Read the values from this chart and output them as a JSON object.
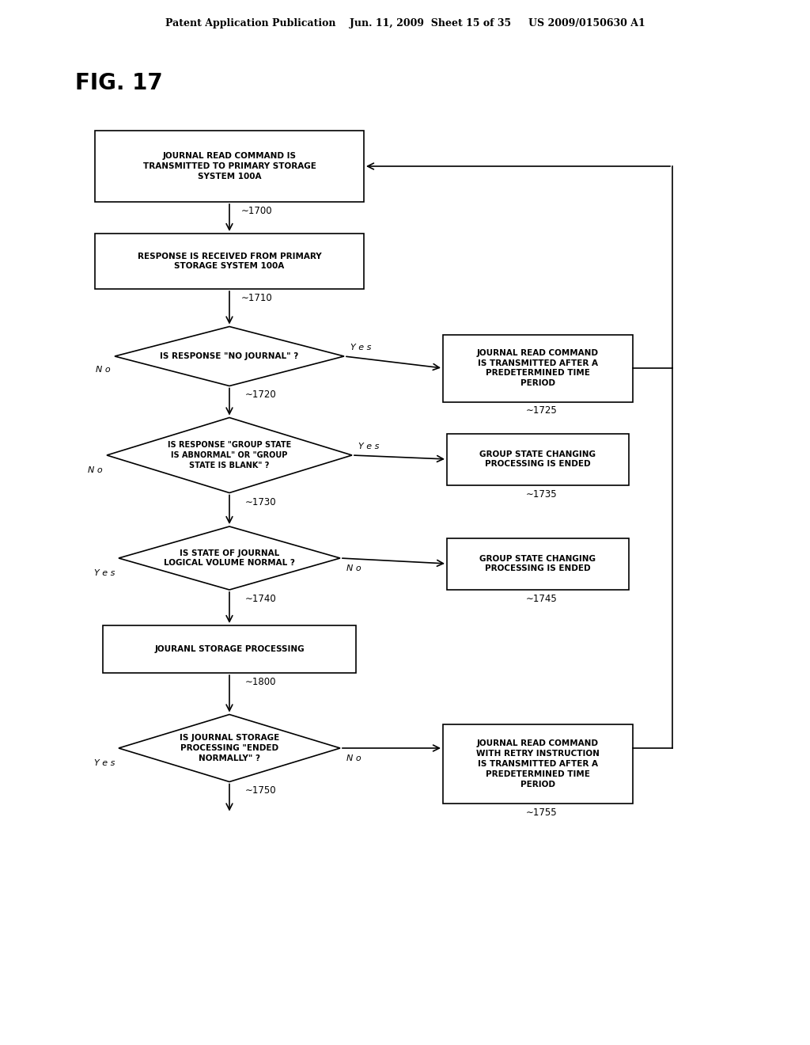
{
  "bg_color": "#ffffff",
  "header_text": "Patent Application Publication    Jun. 11, 2009  Sheet 15 of 35     US 2009/0150630 A1",
  "fig_label": "FIG. 17",
  "box1700_label": "JOURNAL READ COMMAND IS\nTRANSMITTED TO PRIMARY STORAGE\nSYSTEM 100A",
  "box1710_label": "RESPONSE IS RECEIVED FROM PRIMARY\nSTORAGE SYSTEM 100A",
  "dia1720_label": "IS RESPONSE \"NO JOURNAL\" ?",
  "box1725_label": "JOURNAL READ COMMAND\nIS TRANSMITTED AFTER A\nPREDETERMINED TIME\nPERIOD",
  "dia1730_label": "IS RESPONSE \"GROUP STATE\nIS ABNORMAL\" OR \"GROUP\nSTATE IS BLANK\" ?",
  "box1735_label": "GROUP STATE CHANGING\nPROCESSING IS ENDED",
  "dia1740_label": "IS STATE OF JOURNAL\nLOGICAL VOLUME NORMAL ?",
  "box1745_label": "GROUP STATE CHANGING\nPROCESSING IS ENDED",
  "box1800_label": "JOURANL STORAGE PROCESSING",
  "dia1750_label": "IS JOURNAL STORAGE\nPROCESSING \"ENDED\nNORMALLY\" ?",
  "box1755_label": "JOURNAL READ COMMAND\nWITH RETRY INSTRUCTION\nIS TRANSMITTED AFTER A\nPREDETERMINED TIME\nPERIOD"
}
